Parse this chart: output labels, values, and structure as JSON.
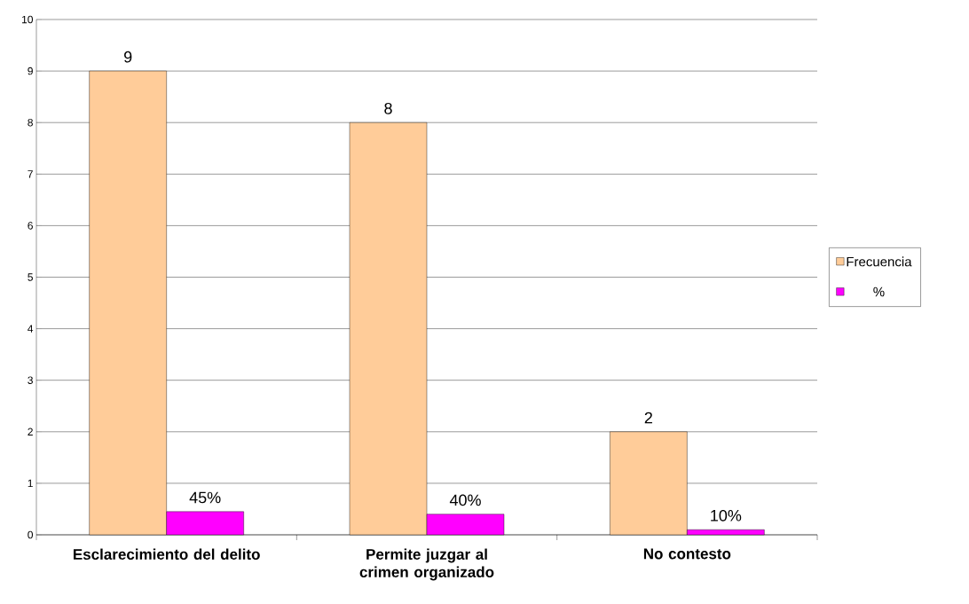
{
  "chart_data": {
    "type": "bar",
    "categories": [
      "Esclarecimiento del delito",
      "Permite juzgar al crimen organizado",
      "No contesto"
    ],
    "series": [
      {
        "name": "Frecuencia",
        "color": "#ffcc99",
        "values": [
          9,
          8,
          2
        ],
        "value_labels": [
          "9",
          "8",
          "2"
        ]
      },
      {
        "name": "%",
        "color": "#ff00ff",
        "values": [
          0.45,
          0.4,
          0.1
        ],
        "value_labels": [
          "45%",
          "40%",
          "10%"
        ]
      }
    ],
    "ylim": [
      0,
      10
    ],
    "yticks": [
      0,
      1,
      2,
      3,
      4,
      5,
      6,
      7,
      8,
      9,
      10
    ],
    "grid": "y",
    "legend": "right"
  }
}
